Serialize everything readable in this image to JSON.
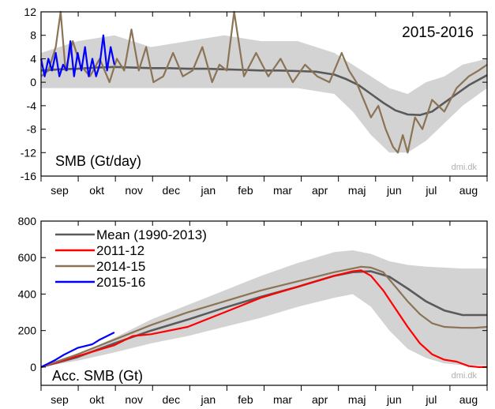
{
  "chart_data": [
    {
      "type": "line",
      "title": "2015-2016",
      "ylabel_inset": "SMB (Gt/day)",
      "credit": "dmi.dk",
      "ylim": [
        -16,
        12
      ],
      "yticks": [
        12,
        8,
        4,
        0,
        -4,
        -8,
        -12,
        -16
      ],
      "xlim_days": [
        0,
        365
      ],
      "months": [
        "sep",
        "okt",
        "nov",
        "dec",
        "jan",
        "feb",
        "mar",
        "apr",
        "maj",
        "jun",
        "jul",
        "aug"
      ],
      "grid": false,
      "band": {
        "x": [
          0,
          30,
          60,
          90,
          120,
          150,
          180,
          210,
          240,
          255,
          270,
          285,
          300,
          315,
          330,
          345,
          365
        ],
        "upper": [
          5,
          7,
          8,
          6,
          7,
          8,
          7,
          7,
          5,
          3,
          1,
          -1,
          -2,
          0,
          1,
          3,
          4
        ],
        "lower": [
          -1,
          -1,
          -1,
          -1,
          -1,
          -1,
          -1,
          -1,
          -2,
          -5,
          -9,
          -12,
          -12,
          -10,
          -7,
          -4,
          -1
        ]
      },
      "series": [
        {
          "name": "Mean (1990-2013)",
          "color": "#5a5a5a",
          "x": [
            0,
            15,
            30,
            45,
            60,
            75,
            90,
            105,
            120,
            135,
            150,
            165,
            180,
            195,
            210,
            225,
            240,
            250,
            260,
            270,
            280,
            290,
            300,
            310,
            320,
            330,
            340,
            350,
            365
          ],
          "y": [
            2.0,
            2.2,
            2.3,
            2.5,
            2.6,
            2.5,
            2.4,
            2.4,
            2.3,
            2.3,
            2.2,
            2.1,
            2.0,
            2.0,
            1.9,
            1.8,
            1.3,
            0.5,
            -0.5,
            -2.0,
            -3.5,
            -4.8,
            -5.5,
            -5.6,
            -5.0,
            -3.5,
            -2.0,
            -0.5,
            1.2
          ]
        },
        {
          "name": "2014-15",
          "color": "#8b7355",
          "x": [
            0,
            6,
            12,
            16,
            20,
            26,
            32,
            40,
            48,
            56,
            62,
            68,
            74,
            80,
            86,
            92,
            100,
            108,
            116,
            124,
            132,
            140,
            146,
            152,
            158,
            166,
            176,
            186,
            196,
            206,
            216,
            226,
            236,
            246,
            252,
            258,
            264,
            270,
            276,
            282,
            288,
            292,
            296,
            300,
            306,
            312,
            320,
            330,
            340,
            350,
            358,
            365
          ],
          "y": [
            1,
            2,
            6,
            12,
            2,
            7,
            3,
            1,
            4,
            0,
            4,
            2,
            9,
            2,
            6,
            0,
            1,
            5,
            1,
            2,
            6,
            0,
            3,
            2,
            12,
            1,
            5,
            1,
            4,
            0,
            3,
            1,
            0,
            5,
            2,
            0,
            -3,
            -6,
            -4,
            -8,
            -11,
            -12,
            -9,
            -12,
            -6,
            -8,
            -3,
            -5,
            -1,
            1,
            2,
            3
          ]
        },
        {
          "name": "2015-16",
          "color": "#0000ff",
          "x": [
            0,
            3,
            6,
            9,
            12,
            15,
            18,
            21,
            24,
            27,
            30,
            33,
            36,
            39,
            42,
            45,
            48,
            51,
            54,
            57,
            60
          ],
          "y": [
            4,
            1,
            4,
            2,
            5,
            1,
            3,
            2,
            7,
            1,
            5,
            2,
            6,
            1,
            4,
            1,
            3,
            8,
            2,
            6,
            3
          ]
        }
      ]
    },
    {
      "type": "line",
      "ylabel_inset": "Acc. SMB (Gt)",
      "credit": "dmi.dk",
      "ylim": [
        -100,
        800
      ],
      "yticks": [
        800,
        600,
        400,
        200,
        0
      ],
      "xlim_days": [
        0,
        365
      ],
      "months": [
        "sep",
        "okt",
        "nov",
        "dec",
        "jan",
        "feb",
        "mar",
        "apr",
        "maj",
        "jun",
        "jul",
        "aug"
      ],
      "grid": false,
      "legend_position": "top-left",
      "band": {
        "x": [
          0,
          30,
          60,
          90,
          120,
          150,
          180,
          210,
          240,
          255,
          270,
          285,
          300,
          315,
          330,
          345,
          365
        ],
        "upper": [
          0,
          70,
          160,
          260,
          340,
          420,
          500,
          570,
          630,
          640,
          620,
          580,
          560,
          550,
          545,
          540,
          540
        ],
        "lower": [
          0,
          35,
          80,
          130,
          170,
          220,
          270,
          330,
          380,
          400,
          330,
          200,
          100,
          50,
          20,
          10,
          10
        ]
      },
      "series": [
        {
          "name": "Mean (1990-2013)",
          "color": "#5a5a5a",
          "x": [
            0,
            30,
            60,
            90,
            120,
            150,
            180,
            210,
            240,
            255,
            270,
            285,
            300,
            315,
            330,
            345,
            365
          ],
          "y": [
            0,
            55,
            130,
            200,
            260,
            325,
            385,
            440,
            500,
            520,
            525,
            495,
            430,
            360,
            310,
            285,
            285
          ]
        },
        {
          "name": "2011-12",
          "color": "#ff0000",
          "x": [
            0,
            30,
            60,
            75,
            90,
            120,
            150,
            180,
            210,
            240,
            255,
            262,
            270,
            280,
            290,
            300,
            310,
            320,
            330,
            340,
            350,
            358,
            365
          ],
          "y": [
            0,
            60,
            120,
            170,
            180,
            220,
            300,
            380,
            440,
            500,
            525,
            530,
            500,
            420,
            320,
            220,
            130,
            70,
            40,
            30,
            5,
            0,
            0
          ]
        },
        {
          "name": "2014-15",
          "color": "#8b7355",
          "x": [
            0,
            30,
            60,
            90,
            120,
            150,
            180,
            210,
            240,
            255,
            262,
            270,
            280,
            290,
            300,
            310,
            320,
            330,
            345,
            355,
            365
          ],
          "y": [
            0,
            70,
            150,
            230,
            300,
            360,
            420,
            470,
            520,
            540,
            550,
            545,
            520,
            440,
            360,
            290,
            240,
            220,
            215,
            215,
            220
          ]
        },
        {
          "name": "2015-16",
          "color": "#0000ff",
          "x": [
            0,
            6,
            12,
            18,
            24,
            30,
            36,
            42,
            48,
            54,
            60
          ],
          "y": [
            0,
            20,
            40,
            65,
            85,
            105,
            115,
            125,
            150,
            170,
            190
          ]
        }
      ]
    }
  ]
}
